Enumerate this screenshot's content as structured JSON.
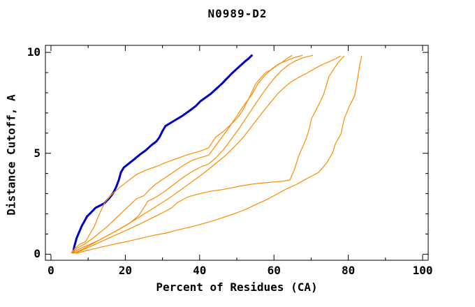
{
  "title": "N0989-D2",
  "colors": {
    "background": "#ffffff",
    "axis": "#000000",
    "highlight_line": "#0000cd",
    "other_lines": "#ff8c00"
  },
  "chart_data": {
    "type": "line",
    "title": "N0989-D2",
    "xlabel": "Percent of Residues (CA)",
    "ylabel": "Distance Cutoff, A",
    "xlim": [
      -1.5,
      101.5
    ],
    "ylim": [
      -0.3,
      10.35
    ],
    "x_ticks": [
      0,
      20,
      40,
      60,
      80,
      100
    ],
    "x_minor_step": 10,
    "y_ticks": [
      0,
      5,
      10
    ],
    "y_minor_step": 1,
    "grid": false,
    "legend": "none",
    "series": [
      {
        "name": "blue-model",
        "color": "#0000cd",
        "width": 3,
        "points": [
          [
            5.9,
            0.05
          ],
          [
            6.3,
            0.4
          ],
          [
            6.9,
            0.8
          ],
          [
            7.6,
            1.1
          ],
          [
            8.3,
            1.4
          ],
          [
            8.9,
            1.6
          ],
          [
            9.7,
            1.87
          ],
          [
            10.7,
            2.05
          ],
          [
            12,
            2.3
          ],
          [
            13.1,
            2.4
          ],
          [
            14.4,
            2.53
          ],
          [
            15.8,
            2.8
          ],
          [
            16.8,
            3.05
          ],
          [
            17.6,
            3.35
          ],
          [
            18.3,
            3.7
          ],
          [
            18.8,
            4.05
          ],
          [
            19.6,
            4.3
          ],
          [
            21,
            4.5
          ],
          [
            22.5,
            4.72
          ],
          [
            24,
            4.95
          ],
          [
            25.5,
            5.15
          ],
          [
            27,
            5.4
          ],
          [
            28.4,
            5.6
          ],
          [
            29.2,
            5.8
          ],
          [
            30,
            6.1
          ],
          [
            30.8,
            6.35
          ],
          [
            33,
            6.6
          ],
          [
            35.3,
            6.85
          ],
          [
            37.2,
            7.1
          ],
          [
            39,
            7.35
          ],
          [
            40.2,
            7.58
          ],
          [
            41.5,
            7.75
          ],
          [
            43,
            7.95
          ],
          [
            44.5,
            8.2
          ],
          [
            46,
            8.45
          ],
          [
            47.3,
            8.7
          ],
          [
            48.6,
            8.95
          ],
          [
            49.8,
            9.15
          ],
          [
            51,
            9.35
          ],
          [
            52.2,
            9.55
          ],
          [
            53.2,
            9.7
          ],
          [
            54.2,
            9.88
          ]
        ]
      },
      {
        "name": "orange-1",
        "color": "#ff8c00",
        "width": 1.2,
        "points": [
          [
            5.4,
            0.05
          ],
          [
            6.5,
            0.3
          ],
          [
            7.8,
            0.5
          ],
          [
            9.3,
            0.62
          ],
          [
            10.3,
            0.95
          ],
          [
            11.6,
            1.35
          ],
          [
            12.8,
            1.9
          ],
          [
            13.8,
            2.3
          ],
          [
            14.5,
            2.56
          ],
          [
            16,
            2.9
          ],
          [
            18.1,
            3.25
          ],
          [
            20.5,
            3.6
          ],
          [
            23,
            3.95
          ],
          [
            25.7,
            4.18
          ],
          [
            28.4,
            4.35
          ],
          [
            31,
            4.55
          ],
          [
            34,
            4.75
          ],
          [
            37,
            4.95
          ],
          [
            40,
            5.1
          ],
          [
            42.4,
            5.27
          ],
          [
            44.3,
            5.8
          ],
          [
            46.5,
            6.1
          ],
          [
            48.5,
            6.45
          ],
          [
            49.9,
            6.7
          ],
          [
            51.5,
            7.1
          ],
          [
            53.3,
            7.75
          ],
          [
            55.1,
            8.45
          ],
          [
            56.5,
            8.75
          ],
          [
            57.8,
            9.0
          ],
          [
            59.3,
            9.15
          ],
          [
            60.8,
            9.35
          ],
          [
            62.1,
            9.5
          ],
          [
            63.5,
            9.7
          ],
          [
            64.9,
            9.86
          ]
        ]
      },
      {
        "name": "orange-2",
        "color": "#ff8c00",
        "width": 1.2,
        "points": [
          [
            5.6,
            0.05
          ],
          [
            7,
            0.3
          ],
          [
            9,
            0.5
          ],
          [
            11,
            0.75
          ],
          [
            13,
            1.05
          ],
          [
            15,
            1.35
          ],
          [
            17,
            1.7
          ],
          [
            19,
            2.05
          ],
          [
            21,
            2.4
          ],
          [
            23,
            2.75
          ],
          [
            25,
            2.9
          ],
          [
            26.5,
            3.2
          ],
          [
            28,
            3.45
          ],
          [
            30,
            3.7
          ],
          [
            32,
            3.95
          ],
          [
            34,
            4.2
          ],
          [
            36,
            4.45
          ],
          [
            38,
            4.65
          ],
          [
            40,
            4.78
          ],
          [
            42.4,
            4.9
          ],
          [
            44,
            5.3
          ],
          [
            46,
            5.8
          ],
          [
            48,
            6.3
          ],
          [
            50,
            6.85
          ],
          [
            52,
            7.4
          ],
          [
            54,
            7.9
          ],
          [
            55.7,
            8.45
          ],
          [
            57.5,
            8.85
          ],
          [
            59.5,
            9.2
          ],
          [
            61.5,
            9.45
          ],
          [
            63.5,
            9.6
          ],
          [
            65.5,
            9.75
          ],
          [
            67.7,
            9.86
          ]
        ]
      },
      {
        "name": "orange-3",
        "color": "#ff8c00",
        "width": 1.2,
        "points": [
          [
            5.8,
            0.05
          ],
          [
            7.5,
            0.25
          ],
          [
            10,
            0.45
          ],
          [
            13,
            0.7
          ],
          [
            16,
            1.0
          ],
          [
            19,
            1.3
          ],
          [
            21.3,
            1.55
          ],
          [
            23.5,
            1.9
          ],
          [
            25,
            2.3
          ],
          [
            26,
            2.62
          ],
          [
            28,
            2.8
          ],
          [
            30.5,
            3.1
          ],
          [
            33,
            3.45
          ],
          [
            35.5,
            3.8
          ],
          [
            38,
            4.1
          ],
          [
            40,
            4.3
          ],
          [
            42.4,
            4.47
          ],
          [
            44.5,
            4.8
          ],
          [
            46.5,
            5.2
          ],
          [
            48.5,
            5.7
          ],
          [
            50.5,
            6.2
          ],
          [
            52.5,
            6.75
          ],
          [
            54.5,
            7.3
          ],
          [
            56.5,
            7.85
          ],
          [
            58.5,
            8.35
          ],
          [
            60.2,
            8.75
          ],
          [
            62,
            9.1
          ],
          [
            64,
            9.4
          ],
          [
            66,
            9.6
          ],
          [
            68,
            9.75
          ],
          [
            70.5,
            9.86
          ]
        ]
      },
      {
        "name": "orange-4",
        "color": "#ff8c00",
        "width": 1.2,
        "points": [
          [
            6.2,
            0.05
          ],
          [
            8.5,
            0.25
          ],
          [
            11,
            0.5
          ],
          [
            14,
            0.8
          ],
          [
            17,
            1.1
          ],
          [
            20,
            1.42
          ],
          [
            23,
            1.75
          ],
          [
            26,
            2.1
          ],
          [
            29,
            2.45
          ],
          [
            32,
            2.8
          ],
          [
            35,
            3.2
          ],
          [
            38,
            3.6
          ],
          [
            41,
            4.0
          ],
          [
            44,
            4.45
          ],
          [
            47,
            4.9
          ],
          [
            49.5,
            5.35
          ],
          [
            52,
            5.85
          ],
          [
            54.5,
            6.45
          ],
          [
            57,
            7.05
          ],
          [
            59,
            7.5
          ],
          [
            61,
            7.95
          ],
          [
            63,
            8.3
          ],
          [
            64.5,
            8.52
          ],
          [
            66.5,
            8.75
          ],
          [
            68.6,
            8.95
          ],
          [
            71,
            9.2
          ],
          [
            73,
            9.4
          ],
          [
            75,
            9.55
          ],
          [
            76.5,
            9.68
          ],
          [
            77.9,
            9.82
          ]
        ]
      },
      {
        "name": "orange-5",
        "color": "#ff8c00",
        "width": 1.2,
        "points": [
          [
            6.6,
            0.05
          ],
          [
            9,
            0.25
          ],
          [
            12,
            0.5
          ],
          [
            15,
            0.75
          ],
          [
            18,
            1.0
          ],
          [
            21,
            1.25
          ],
          [
            24,
            1.5
          ],
          [
            27,
            1.78
          ],
          [
            30,
            2.05
          ],
          [
            32.5,
            2.3
          ],
          [
            34,
            2.56
          ],
          [
            37,
            2.85
          ],
          [
            40,
            3.0
          ],
          [
            43,
            3.12
          ],
          [
            46,
            3.2
          ],
          [
            48,
            3.27
          ],
          [
            51,
            3.38
          ],
          [
            54,
            3.47
          ],
          [
            57,
            3.53
          ],
          [
            60,
            3.58
          ],
          [
            62.5,
            3.62
          ],
          [
            64.3,
            3.68
          ],
          [
            65.5,
            4.2
          ],
          [
            66.7,
            4.9
          ],
          [
            67.8,
            5.35
          ],
          [
            68.6,
            5.7
          ],
          [
            69.5,
            6.2
          ],
          [
            70.1,
            6.72
          ],
          [
            71.2,
            7.1
          ],
          [
            72.3,
            7.5
          ],
          [
            73.3,
            7.9
          ],
          [
            73.9,
            8.25
          ],
          [
            74.8,
            8.8
          ],
          [
            76,
            9.15
          ],
          [
            77.3,
            9.5
          ],
          [
            78.9,
            9.83
          ]
        ]
      },
      {
        "name": "orange-6",
        "color": "#ff8c00",
        "width": 1.2,
        "points": [
          [
            6.9,
            0.05
          ],
          [
            10,
            0.2
          ],
          [
            13.5,
            0.35
          ],
          [
            17,
            0.5
          ],
          [
            20.5,
            0.63
          ],
          [
            24,
            0.78
          ],
          [
            27.5,
            0.93
          ],
          [
            31,
            1.05
          ],
          [
            34,
            1.2
          ],
          [
            38,
            1.37
          ],
          [
            42,
            1.57
          ],
          [
            46,
            1.8
          ],
          [
            50,
            2.05
          ],
          [
            52.5,
            2.23
          ],
          [
            55.1,
            2.46
          ],
          [
            58,
            2.7
          ],
          [
            61,
            3.0
          ],
          [
            63.5,
            3.25
          ],
          [
            66,
            3.45
          ],
          [
            68.6,
            3.72
          ],
          [
            70.5,
            3.9
          ],
          [
            72,
            4.05
          ],
          [
            74.2,
            4.53
          ],
          [
            75.7,
            5.0
          ],
          [
            76.6,
            5.5
          ],
          [
            78,
            5.95
          ],
          [
            78.9,
            6.72
          ],
          [
            80.2,
            7.3
          ],
          [
            81.7,
            7.85
          ],
          [
            82.4,
            8.6
          ],
          [
            83,
            9.3
          ],
          [
            83.6,
            9.83
          ]
        ]
      }
    ]
  }
}
